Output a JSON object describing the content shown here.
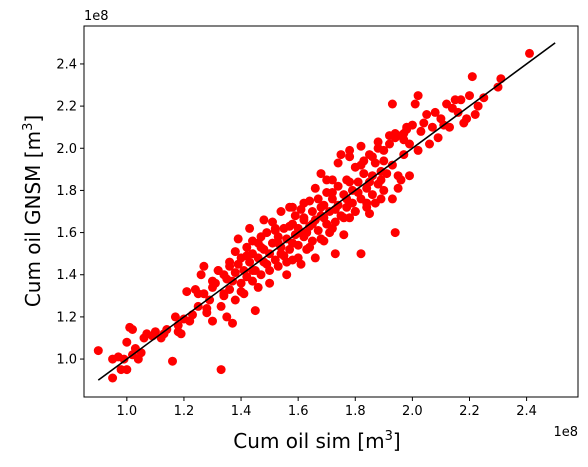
{
  "chart_data": {
    "type": "scatter",
    "xlabel": "Cum oil sim [m",
    "xlabel_sup": "3",
    "xlabel_end": "]",
    "ylabel": "Cum oil GNSM [m",
    "ylabel_sup": "3",
    "ylabel_end": "]",
    "x_offset_label": "1e8",
    "y_offset_label": "1e8",
    "xlim": [
      0.85,
      2.58
    ],
    "ylim": [
      0.82,
      2.58
    ],
    "x_ticks": [
      1.0,
      1.2,
      1.4,
      1.6,
      1.8,
      2.0,
      2.2,
      2.4
    ],
    "x_tick_labels": [
      "1.0",
      "1.2",
      "1.4",
      "1.6",
      "1.8",
      "2.0",
      "2.2",
      "2.4"
    ],
    "y_ticks": [
      1.0,
      1.2,
      1.4,
      1.6,
      1.8,
      2.0,
      2.2,
      2.4
    ],
    "y_tick_labels": [
      "1.0",
      "1.2",
      "1.4",
      "1.6",
      "1.8",
      "2.0",
      "2.2",
      "2.4"
    ],
    "grid": false,
    "point_color": "#ff0000",
    "line_color": "#000000",
    "reference_line": {
      "x": [
        0.9,
        2.5
      ],
      "y": [
        0.9,
        2.5
      ]
    },
    "points": [
      [
        0.9,
        1.04
      ],
      [
        0.95,
        0.91
      ],
      [
        0.95,
        1.0
      ],
      [
        0.97,
        1.01
      ],
      [
        0.98,
        0.95
      ],
      [
        0.99,
        1.0
      ],
      [
        1.0,
        1.08
      ],
      [
        1.0,
        0.95
      ],
      [
        1.01,
        1.15
      ],
      [
        1.02,
        1.14
      ],
      [
        1.02,
        1.02
      ],
      [
        1.03,
        1.05
      ],
      [
        1.04,
        1.0
      ],
      [
        1.05,
        1.03
      ],
      [
        1.06,
        1.1
      ],
      [
        1.07,
        1.12
      ],
      [
        1.09,
        1.11
      ],
      [
        1.1,
        1.13
      ],
      [
        1.12,
        1.1
      ],
      [
        1.13,
        1.12
      ],
      [
        1.14,
        1.14
      ],
      [
        1.16,
        0.99
      ],
      [
        1.17,
        1.2
      ],
      [
        1.18,
        1.16
      ],
      [
        1.19,
        1.12
      ],
      [
        1.2,
        1.19
      ],
      [
        1.21,
        1.32
      ],
      [
        1.22,
        1.18
      ],
      [
        1.23,
        1.21
      ],
      [
        1.25,
        1.25
      ],
      [
        1.26,
        1.4
      ],
      [
        1.27,
        1.31
      ],
      [
        1.27,
        1.44
      ],
      [
        1.28,
        1.22
      ],
      [
        1.29,
        1.28
      ],
      [
        1.3,
        1.34
      ],
      [
        1.3,
        1.18
      ],
      [
        1.31,
        1.36
      ],
      [
        1.32,
        1.42
      ],
      [
        1.33,
        0.95
      ],
      [
        1.33,
        1.25
      ],
      [
        1.34,
        1.4
      ],
      [
        1.34,
        1.3
      ],
      [
        1.35,
        1.38
      ],
      [
        1.35,
        1.2
      ],
      [
        1.36,
        1.44
      ],
      [
        1.36,
        1.33
      ],
      [
        1.37,
        1.17
      ],
      [
        1.38,
        1.51
      ],
      [
        1.38,
        1.41
      ],
      [
        1.38,
        1.28
      ],
      [
        1.39,
        1.57
      ],
      [
        1.39,
        1.45
      ],
      [
        1.4,
        1.36
      ],
      [
        1.4,
        1.48
      ],
      [
        1.41,
        1.31
      ],
      [
        1.41,
        1.42
      ],
      [
        1.42,
        1.39
      ],
      [
        1.42,
        1.53
      ],
      [
        1.43,
        1.46
      ],
      [
        1.43,
        1.62
      ],
      [
        1.44,
        1.37
      ],
      [
        1.44,
        1.5
      ],
      [
        1.45,
        1.42
      ],
      [
        1.45,
        1.23
      ],
      [
        1.46,
        1.55
      ],
      [
        1.46,
        1.48
      ],
      [
        1.47,
        1.58
      ],
      [
        1.47,
        1.4
      ],
      [
        1.48,
        1.52
      ],
      [
        1.48,
        1.66
      ],
      [
        1.49,
        1.45
      ],
      [
        1.49,
        1.6
      ],
      [
        1.5,
        1.5
      ],
      [
        1.5,
        1.36
      ],
      [
        1.51,
        1.65
      ],
      [
        1.51,
        1.55
      ],
      [
        1.52,
        1.47
      ],
      [
        1.52,
        1.61
      ],
      [
        1.53,
        1.44
      ],
      [
        1.53,
        1.58
      ],
      [
        1.54,
        1.53
      ],
      [
        1.54,
        1.7
      ],
      [
        1.55,
        1.49
      ],
      [
        1.55,
        1.62
      ],
      [
        1.56,
        1.4
      ],
      [
        1.56,
        1.57
      ],
      [
        1.57,
        1.72
      ],
      [
        1.57,
        1.52
      ],
      [
        1.58,
        1.64
      ],
      [
        1.58,
        1.47
      ],
      [
        1.59,
        1.59
      ],
      [
        1.59,
        1.68
      ],
      [
        1.6,
        1.54
      ],
      [
        1.6,
        1.62
      ],
      [
        1.61,
        1.45
      ],
      [
        1.61,
        1.71
      ],
      [
        1.62,
        1.58
      ],
      [
        1.62,
        1.66
      ],
      [
        1.63,
        1.52
      ],
      [
        1.63,
        1.6
      ],
      [
        1.64,
        1.75
      ],
      [
        1.64,
        1.63
      ],
      [
        1.65,
        1.56
      ],
      [
        1.65,
        1.7
      ],
      [
        1.66,
        1.66
      ],
      [
        1.66,
        1.48
      ],
      [
        1.67,
        1.76
      ],
      [
        1.67,
        1.61
      ],
      [
        1.68,
        1.88
      ],
      [
        1.68,
        1.68
      ],
      [
        1.69,
        1.56
      ],
      [
        1.69,
        1.73
      ],
      [
        1.7,
        1.64
      ],
      [
        1.7,
        1.79
      ],
      [
        1.71,
        1.6
      ],
      [
        1.71,
        1.7
      ],
      [
        1.72,
        1.85
      ],
      [
        1.72,
        1.76
      ],
      [
        1.73,
        1.65
      ],
      [
        1.73,
        1.5
      ],
      [
        1.74,
        1.73
      ],
      [
        1.74,
        1.82
      ],
      [
        1.75,
        1.68
      ],
      [
        1.75,
        1.97
      ],
      [
        1.76,
        1.78
      ],
      [
        1.76,
        1.59
      ],
      [
        1.77,
        1.72
      ],
      [
        1.77,
        1.85
      ],
      [
        1.78,
        1.67
      ],
      [
        1.78,
        1.99
      ],
      [
        1.79,
        1.8
      ],
      [
        1.79,
        1.74
      ],
      [
        1.8,
        1.91
      ],
      [
        1.8,
        1.7
      ],
      [
        1.81,
        1.84
      ],
      [
        1.82,
        1.5
      ],
      [
        1.82,
        1.76
      ],
      [
        1.83,
        1.94
      ],
      [
        1.83,
        1.88
      ],
      [
        1.84,
        1.72
      ],
      [
        1.84,
        1.81
      ],
      [
        1.85,
        1.97
      ],
      [
        1.85,
        1.69
      ],
      [
        1.86,
        1.87
      ],
      [
        1.86,
        1.78
      ],
      [
        1.87,
        1.93
      ],
      [
        1.87,
        1.74
      ],
      [
        1.88,
        2.0
      ],
      [
        1.88,
        1.83
      ],
      [
        1.89,
        1.89
      ],
      [
        1.89,
        1.76
      ],
      [
        1.9,
        1.94
      ],
      [
        1.91,
        1.88
      ],
      [
        1.92,
        2.02
      ],
      [
        1.93,
        2.21
      ],
      [
        1.93,
        1.76
      ],
      [
        1.94,
        2.05
      ],
      [
        1.94,
        1.6
      ],
      [
        1.95,
        1.87
      ],
      [
        1.95,
        1.81
      ],
      [
        1.96,
        2.06
      ],
      [
        1.97,
        2.07
      ],
      [
        1.98,
        2.1
      ],
      [
        1.99,
        1.87
      ],
      [
        2.0,
        2.11
      ],
      [
        2.01,
        2.21
      ],
      [
        2.02,
        2.25
      ],
      [
        2.03,
        2.08
      ],
      [
        2.04,
        2.12
      ],
      [
        2.05,
        2.16
      ],
      [
        2.06,
        2.02
      ],
      [
        2.07,
        2.1
      ],
      [
        2.08,
        2.17
      ],
      [
        2.1,
        2.14
      ],
      [
        2.11,
        2.11
      ],
      [
        2.12,
        2.21
      ],
      [
        2.13,
        2.1
      ],
      [
        2.14,
        2.19
      ],
      [
        2.15,
        2.23
      ],
      [
        2.16,
        2.17
      ],
      [
        2.17,
        2.23
      ],
      [
        2.18,
        2.12
      ],
      [
        2.19,
        2.14
      ],
      [
        2.2,
        2.25
      ],
      [
        2.21,
        2.34
      ],
      [
        2.22,
        2.16
      ],
      [
        2.23,
        2.2
      ],
      [
        2.25,
        2.24
      ],
      [
        2.3,
        2.29
      ],
      [
        2.31,
        2.33
      ],
      [
        2.41,
        2.45
      ],
      [
        1.18,
        1.13
      ],
      [
        1.24,
        1.33
      ],
      [
        1.32,
        1.42
      ],
      [
        1.36,
        1.46
      ],
      [
        1.44,
        1.56
      ],
      [
        1.52,
        1.62
      ],
      [
        1.58,
        1.72
      ],
      [
        1.62,
        1.74
      ],
      [
        1.66,
        1.81
      ],
      [
        1.7,
        1.85
      ],
      [
        1.74,
        1.93
      ],
      [
        1.78,
        1.96
      ],
      [
        1.82,
        2.01
      ],
      [
        1.88,
        2.03
      ],
      [
        1.92,
        2.06
      ],
      [
        1.97,
        2.04
      ],
      [
        1.46,
        1.34
      ],
      [
        1.5,
        1.42
      ],
      [
        1.56,
        1.46
      ],
      [
        1.6,
        1.48
      ],
      [
        1.64,
        1.53
      ],
      [
        1.68,
        1.57
      ],
      [
        1.72,
        1.62
      ],
      [
        1.76,
        1.67
      ],
      [
        1.8,
        1.7
      ],
      [
        1.84,
        1.74
      ],
      [
        1.9,
        1.8
      ],
      [
        1.96,
        1.85
      ],
      [
        2.02,
        1.99
      ],
      [
        2.09,
        2.05
      ],
      [
        1.28,
        1.24
      ],
      [
        1.34,
        1.31
      ],
      [
        1.4,
        1.32
      ],
      [
        1.44,
        1.42
      ],
      [
        1.48,
        1.46
      ],
      [
        1.54,
        1.5
      ],
      [
        1.58,
        1.55
      ],
      [
        1.62,
        1.67
      ],
      [
        1.68,
        1.72
      ],
      [
        1.72,
        1.79
      ],
      [
        1.78,
        1.84
      ],
      [
        1.82,
        1.92
      ],
      [
        1.86,
        1.96
      ],
      [
        1.9,
        1.99
      ],
      [
        1.94,
        2.07
      ],
      [
        1.98,
        2.09
      ],
      [
        1.25,
        1.31
      ],
      [
        1.3,
        1.37
      ],
      [
        1.37,
        1.37
      ],
      [
        1.42,
        1.49
      ],
      [
        1.47,
        1.53
      ],
      [
        1.53,
        1.55
      ],
      [
        1.57,
        1.63
      ],
      [
        1.61,
        1.6
      ],
      [
        1.65,
        1.64
      ],
      [
        1.69,
        1.67
      ],
      [
        1.73,
        1.71
      ],
      [
        1.77,
        1.76
      ],
      [
        1.81,
        1.79
      ],
      [
        1.85,
        1.84
      ],
      [
        1.89,
        1.85
      ],
      [
        1.93,
        1.92
      ],
      [
        1.97,
        1.97
      ],
      [
        1.99,
        2.02
      ]
    ]
  }
}
